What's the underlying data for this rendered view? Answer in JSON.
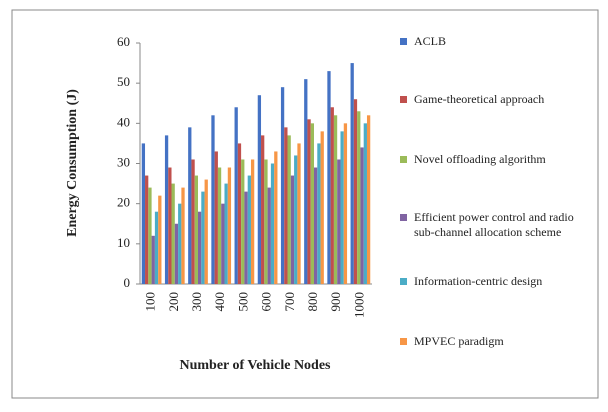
{
  "chart_data": {
    "type": "bar",
    "xlabel": "Number of Vehicle Nodes",
    "ylabel": "Energy Consumption (J)",
    "categories": [
      "100",
      "200",
      "300",
      "400",
      "500",
      "600",
      "700",
      "800",
      "900",
      "1000"
    ],
    "series": [
      {
        "name": "ACLB",
        "color": "#4472c4",
        "values": [
          35,
          37,
          39,
          42,
          44,
          47,
          49,
          51,
          53,
          55
        ]
      },
      {
        "name": "Game-theoretical approach",
        "color": "#c0504d",
        "values": [
          27,
          29,
          31,
          33,
          35,
          37,
          39,
          41,
          44,
          46
        ]
      },
      {
        "name": "Novel offloading algorithm",
        "color": "#9bbb59",
        "values": [
          24,
          25,
          27,
          29,
          31,
          31,
          37,
          40,
          42,
          43
        ]
      },
      {
        "name": "Efficient power control and radio sub-channel allocation scheme",
        "color": "#8064a2",
        "values": [
          12,
          15,
          18,
          20,
          23,
          24,
          27,
          29,
          31,
          34
        ]
      },
      {
        "name": "Information-centric design",
        "color": "#4bacc6",
        "values": [
          18,
          20,
          23,
          25,
          27,
          30,
          32,
          35,
          38,
          40
        ]
      },
      {
        "name": "MPVEC paradigm",
        "color": "#f79646",
        "values": [
          22,
          24,
          26,
          29,
          31,
          33,
          35,
          38,
          40,
          42
        ]
      }
    ],
    "ylim": [
      0,
      60
    ],
    "yticks": [
      0,
      10,
      20,
      30,
      40,
      50,
      60
    ],
    "grid": false
  }
}
